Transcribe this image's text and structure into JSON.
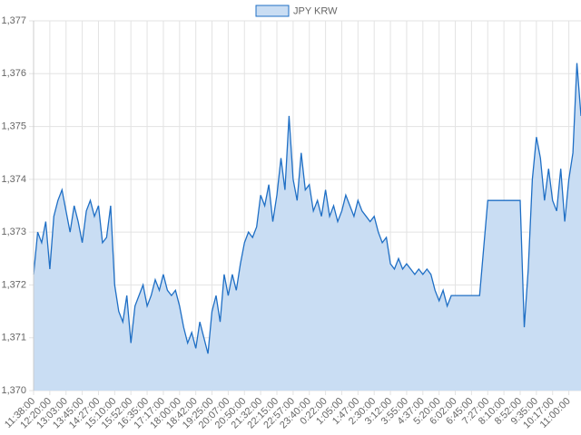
{
  "chart_data": {
    "type": "area",
    "legend": "top",
    "grid": true,
    "series": [
      {
        "name": "JPY KRW",
        "color": "#1f6fc5",
        "fill": "#c9ddf3",
        "values": [
          1372.2,
          1373.0,
          1372.8,
          1373.2,
          1372.3,
          1373.3,
          1373.6,
          1373.8,
          1373.4,
          1373.0,
          1373.5,
          1373.2,
          1372.8,
          1373.4,
          1373.6,
          1373.3,
          1373.5,
          1372.8,
          1372.9,
          1373.5,
          1372.0,
          1371.5,
          1371.3,
          1371.8,
          1370.9,
          1371.6,
          1371.8,
          1372.0,
          1371.6,
          1371.8,
          1372.1,
          1371.9,
          1372.2,
          1371.9,
          1371.8,
          1371.9,
          1371.6,
          1371.2,
          1370.9,
          1371.1,
          1370.8,
          1371.3,
          1371.0,
          1370.7,
          1371.5,
          1371.8,
          1371.3,
          1372.2,
          1371.8,
          1372.2,
          1371.9,
          1372.4,
          1372.8,
          1373.0,
          1372.9,
          1373.1,
          1373.7,
          1373.5,
          1373.9,
          1373.2,
          1373.7,
          1374.4,
          1373.8,
          1375.2,
          1374.0,
          1373.6,
          1374.5,
          1373.8,
          1373.9,
          1373.4,
          1373.6,
          1373.3,
          1373.8,
          1373.3,
          1373.5,
          1373.2,
          1373.4,
          1373.7,
          1373.5,
          1373.3,
          1373.6,
          1373.4,
          1373.3,
          1373.2,
          1373.3,
          1373.0,
          1372.8,
          1372.9,
          1372.4,
          1372.3,
          1372.5,
          1372.3,
          1372.4,
          1372.3,
          1372.2,
          1372.3,
          1372.2,
          1372.3,
          1372.2,
          1371.9,
          1371.7,
          1371.9,
          1371.6,
          1371.8,
          1371.8,
          1371.8,
          1371.8,
          1371.8,
          1371.8,
          1371.8,
          1371.8,
          1372.7,
          1373.6,
          1373.6,
          1373.6,
          1373.6,
          1373.6,
          1373.6,
          1373.6,
          1373.6,
          1373.6,
          1371.2,
          1372.3,
          1374.0,
          1374.8,
          1374.4,
          1373.6,
          1374.2,
          1373.6,
          1373.4,
          1374.2,
          1373.2,
          1374.0,
          1374.5,
          1376.2,
          1375.2
        ]
      }
    ],
    "categories": [
      "11:38:00",
      null,
      null,
      null,
      "12:20:00",
      null,
      null,
      null,
      "13:03:00",
      null,
      null,
      null,
      "13:45:00",
      null,
      null,
      null,
      "14:27:00",
      null,
      null,
      null,
      "15:10:00",
      null,
      null,
      null,
      "15:52:00",
      null,
      null,
      null,
      "16:35:00",
      null,
      null,
      null,
      "17:17:00",
      null,
      null,
      null,
      "18:00:00",
      null,
      null,
      null,
      "18:42:00",
      null,
      null,
      null,
      "19:25:00",
      null,
      null,
      null,
      "20:07:00",
      null,
      null,
      null,
      "20:50:00",
      null,
      null,
      null,
      "21:32:00",
      null,
      null,
      null,
      "22:15:00",
      null,
      null,
      null,
      "22:57:00",
      null,
      null,
      null,
      "23:40:00",
      null,
      null,
      null,
      "0:22:00",
      null,
      null,
      null,
      "1:05:00",
      null,
      null,
      null,
      "1:47:00",
      null,
      null,
      null,
      "2:30:00",
      null,
      null,
      null,
      "3:12:00",
      null,
      null,
      null,
      "3:55:00",
      null,
      null,
      null,
      "4:37:00",
      null,
      null,
      null,
      "5:20:00",
      null,
      null,
      null,
      "6:02:00",
      null,
      null,
      null,
      "6:45:00",
      null,
      null,
      null,
      "7:27:00",
      null,
      null,
      null,
      "8:10:00",
      null,
      null,
      null,
      "8:52:00",
      null,
      null,
      null,
      "9:35:00",
      null,
      null,
      null,
      "10:17:00",
      null,
      null,
      null,
      "11:00:00",
      null,
      null,
      null
    ],
    "ylim": [
      1370,
      1377
    ],
    "yticks": [
      {
        "value": 1370,
        "label": "1,370"
      },
      {
        "value": 1371,
        "label": "1,371"
      },
      {
        "value": 1372,
        "label": "1,372"
      },
      {
        "value": 1373,
        "label": "1,373"
      },
      {
        "value": 1374,
        "label": "1,374"
      },
      {
        "value": 1375,
        "label": "1,375"
      },
      {
        "value": 1376,
        "label": "1,376"
      },
      {
        "value": 1377,
        "label": "1,377"
      }
    ]
  }
}
